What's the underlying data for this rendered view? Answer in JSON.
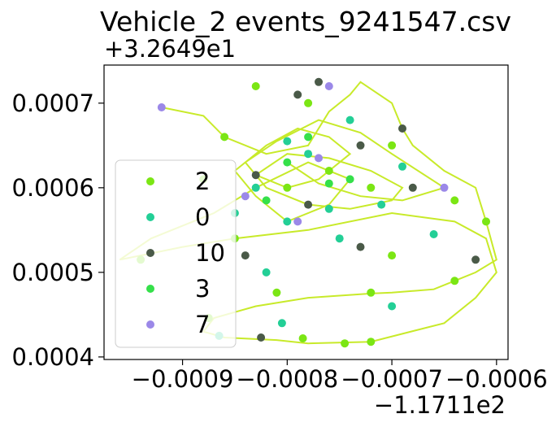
{
  "chart_data": {
    "type": "scatter",
    "title": "Vehicle_2 events_9241547.csv",
    "y_offset_label": "+3.2649e1",
    "x_offset_label": "−1.1711e2",
    "xlim": [
      -0.000975,
      -0.000589
    ],
    "ylim": [
      0.000397,
      0.000745
    ],
    "x_tick_labels": [
      "−0.0009",
      "−0.0008",
      "−0.0007",
      "−0.0006"
    ],
    "x_tick_values": [
      -0.0009,
      -0.0008,
      -0.0007,
      -0.0006
    ],
    "y_tick_labels": [
      "0.0004",
      "0.0005",
      "0.0006",
      "0.0007"
    ],
    "y_tick_values": [
      0.0004,
      0.0005,
      0.0006,
      0.0007
    ],
    "legend_position": "center-left",
    "line_color": "#c8ea2a",
    "series": [
      {
        "name": "2",
        "color": "#7be614",
        "points": [
          [
            -0.000745,
            0.000416
          ],
          [
            -0.00072,
            0.000418
          ],
          [
            -0.000785,
            0.000422
          ],
          [
            -0.000875,
            0.000446
          ],
          [
            -0.00081,
            0.000476
          ],
          [
            -0.00072,
            0.000476
          ],
          [
            -0.00064,
            0.00049
          ],
          [
            -0.0007,
            0.00052
          ],
          [
            -0.00085,
            0.00054
          ],
          [
            -0.00094,
            0.000515
          ],
          [
            -0.00061,
            0.00056
          ],
          [
            -0.00064,
            0.000585
          ],
          [
            -0.0007,
            0.00065
          ],
          [
            -0.00078,
            0.0007
          ],
          [
            -0.00083,
            0.00072
          ],
          [
            -0.00076,
            0.00062
          ],
          [
            -0.0008,
            0.0006
          ],
          [
            -0.00088,
            0.00061
          ],
          [
            -0.00072,
            0.0006
          ],
          [
            -0.00086,
            0.00066
          ]
        ]
      },
      {
        "name": "0",
        "color": "#23cf96",
        "points": [
          [
            -0.000865,
            0.000425
          ],
          [
            -0.000805,
            0.00044
          ],
          [
            -0.0007,
            0.00046
          ],
          [
            -0.00082,
            0.0005
          ],
          [
            -0.00075,
            0.00054
          ],
          [
            -0.00066,
            0.000545
          ],
          [
            -0.00085,
            0.00057
          ],
          [
            -0.00078,
            0.00064
          ],
          [
            -0.00074,
            0.00068
          ],
          [
            -0.0008,
            0.000655
          ],
          [
            -0.00069,
            0.000625
          ],
          [
            -0.00071,
            0.00058
          ],
          [
            -0.0008,
            0.00056
          ],
          [
            -0.00083,
            0.0006
          ],
          [
            -0.00076,
            0.000575
          ]
        ]
      },
      {
        "name": "10",
        "color": "#4a5a48",
        "points": [
          [
            -0.000825,
            0.000423
          ],
          [
            -0.00084,
            0.00052
          ],
          [
            -0.00073,
            0.00053
          ],
          [
            -0.00062,
            0.000515
          ],
          [
            -0.00068,
            0.0006
          ],
          [
            -0.00079,
            0.00071
          ],
          [
            -0.00077,
            0.000725
          ],
          [
            -0.00073,
            0.00065
          ],
          [
            -0.00083,
            0.000615
          ],
          [
            -0.00078,
            0.00058
          ],
          [
            -0.00069,
            0.00067
          ]
        ]
      },
      {
        "name": "3",
        "color": "#35e04a",
        "points": [
          [
            -0.0008,
            0.00063
          ],
          [
            -0.00076,
            0.000605
          ],
          [
            -0.00082,
            0.000585
          ],
          [
            -0.00074,
            0.00061
          ],
          [
            -0.00078,
            0.00066
          ]
        ]
      },
      {
        "name": "7",
        "color": "#9b88e8",
        "points": [
          [
            -0.00092,
            0.000695
          ],
          [
            -0.00076,
            0.00072
          ],
          [
            -0.00065,
            0.0006
          ],
          [
            -0.00077,
            0.000635
          ],
          [
            -0.00084,
            0.00059
          ],
          [
            -0.00079,
            0.00056
          ]
        ]
      }
    ],
    "path_x": [
      -0.00092,
      -0.00088,
      -0.00086,
      -0.00082,
      -0.00078,
      -0.00076,
      -0.00074,
      -0.00073,
      -0.0007,
      -0.00069,
      -0.00068,
      -0.00065,
      -0.00062,
      -0.00061,
      -0.0006,
      -0.00062,
      -0.00064,
      -0.00066,
      -0.0007,
      -0.00072,
      -0.00078,
      -0.00083,
      -0.00087,
      -0.00088,
      -0.00086,
      -0.00081,
      -0.00078,
      -0.00072,
      -0.00065,
      -0.00062,
      -0.0006,
      -0.00061,
      -0.00064,
      -0.0007,
      -0.00078,
      -0.00085,
      -0.0009,
      -0.00094,
      -0.00096,
      -0.00093,
      -0.00087,
      -0.00083,
      -0.00078,
      -0.00074,
      -0.00076,
      -0.0008,
      -0.00083,
      -0.00085,
      -0.00082,
      -0.00079,
      -0.00076,
      -0.00074,
      -0.00077,
      -0.0008,
      -0.00083,
      -0.0008,
      -0.00076,
      -0.00072,
      -0.00069,
      -0.0007,
      -0.00074,
      -0.00078,
      -0.00082,
      -0.00084,
      -0.00081,
      -0.00077,
      -0.00073,
      -0.0007,
      -0.00065,
      -0.00069,
      -0.00073,
      -0.00077,
      -0.0008
    ],
    "path_y": [
      0.000695,
      0.000685,
      0.00066,
      0.00064,
      0.00065,
      0.00069,
      0.00071,
      0.000725,
      0.0007,
      0.00067,
      0.00065,
      0.00062,
      0.0006,
      0.00056,
      0.000515,
      0.0005,
      0.00049,
      0.00048,
      0.000476,
      0.000475,
      0.00047,
      0.00046,
      0.000446,
      0.00043,
      0.000423,
      0.00042,
      0.000416,
      0.000418,
      0.00044,
      0.00047,
      0.0005,
      0.00054,
      0.00056,
      0.00057,
      0.00055,
      0.00054,
      0.00053,
      0.00052,
      0.000515,
      0.00054,
      0.00057,
      0.0006,
      0.00063,
      0.00061,
      0.00058,
      0.00056,
      0.00059,
      0.00062,
      0.00065,
      0.00067,
      0.00066,
      0.00064,
      0.00061,
      0.0006,
      0.000615,
      0.00064,
      0.000635,
      0.00062,
      0.0006,
      0.000585,
      0.000575,
      0.00058,
      0.0006,
      0.00063,
      0.000655,
      0.00068,
      0.000665,
      0.00064,
      0.0006,
      0.000585,
      0.00059,
      0.000605,
      0.00063
    ]
  }
}
